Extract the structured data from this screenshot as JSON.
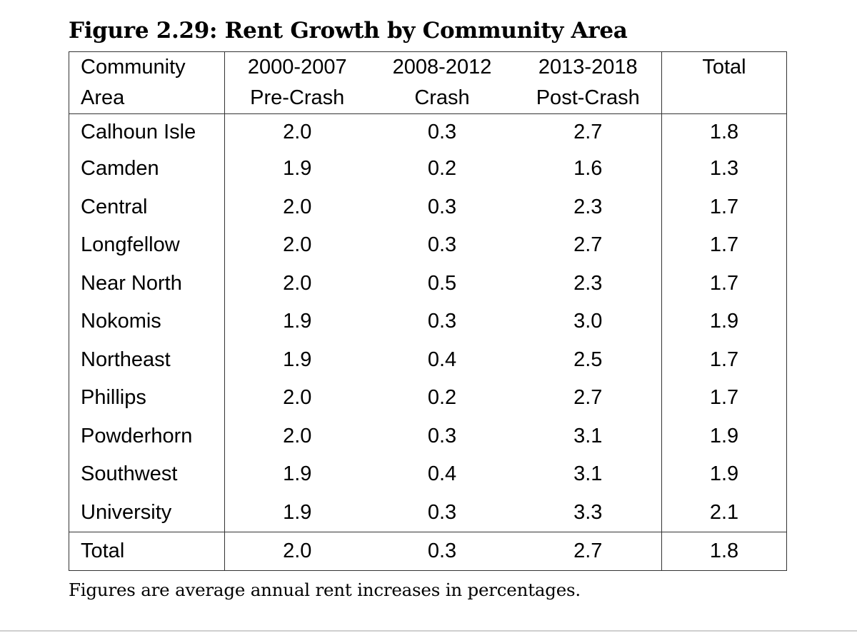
{
  "title": "Figure 2.29: Rent Growth by Community Area",
  "table": {
    "headers": [
      {
        "line1": "Community",
        "line2": "Area"
      },
      {
        "line1": "2000-2007",
        "line2": "Pre-Crash"
      },
      {
        "line1": "2008-2012",
        "line2": "Crash"
      },
      {
        "line1": "2013-2018",
        "line2": "Post-Crash"
      },
      {
        "line1": "Total",
        "line2": ""
      }
    ],
    "rows": [
      {
        "area": "Calhoun Isle",
        "pre": "2.0",
        "crash": "0.3",
        "post": "2.7",
        "total": "1.8"
      },
      {
        "area": "Camden",
        "pre": "1.9",
        "crash": "0.2",
        "post": "1.6",
        "total": "1.3"
      },
      {
        "area": "Central",
        "pre": "2.0",
        "crash": "0.3",
        "post": "2.3",
        "total": "1.7"
      },
      {
        "area": "Longfellow",
        "pre": "2.0",
        "crash": "0.3",
        "post": "2.7",
        "total": "1.7"
      },
      {
        "area": "Near North",
        "pre": "2.0",
        "crash": "0.5",
        "post": "2.3",
        "total": "1.7"
      },
      {
        "area": "Nokomis",
        "pre": "1.9",
        "crash": "0.3",
        "post": "3.0",
        "total": "1.9"
      },
      {
        "area": "Northeast",
        "pre": "1.9",
        "crash": "0.4",
        "post": "2.5",
        "total": "1.7"
      },
      {
        "area": "Phillips",
        "pre": "2.0",
        "crash": "0.2",
        "post": "2.7",
        "total": "1.7"
      },
      {
        "area": "Powderhorn",
        "pre": "2.0",
        "crash": "0.3",
        "post": "3.1",
        "total": "1.9"
      },
      {
        "area": "Southwest",
        "pre": "1.9",
        "crash": "0.4",
        "post": "3.1",
        "total": "1.9"
      },
      {
        "area": "University",
        "pre": "1.9",
        "crash": "0.3",
        "post": "3.3",
        "total": "2.1"
      }
    ],
    "total_row": {
      "area": "Total",
      "pre": "2.0",
      "crash": "0.3",
      "post": "2.7",
      "total": "1.8"
    }
  },
  "footnote": "Figures are average annual rent increases in percentages."
}
